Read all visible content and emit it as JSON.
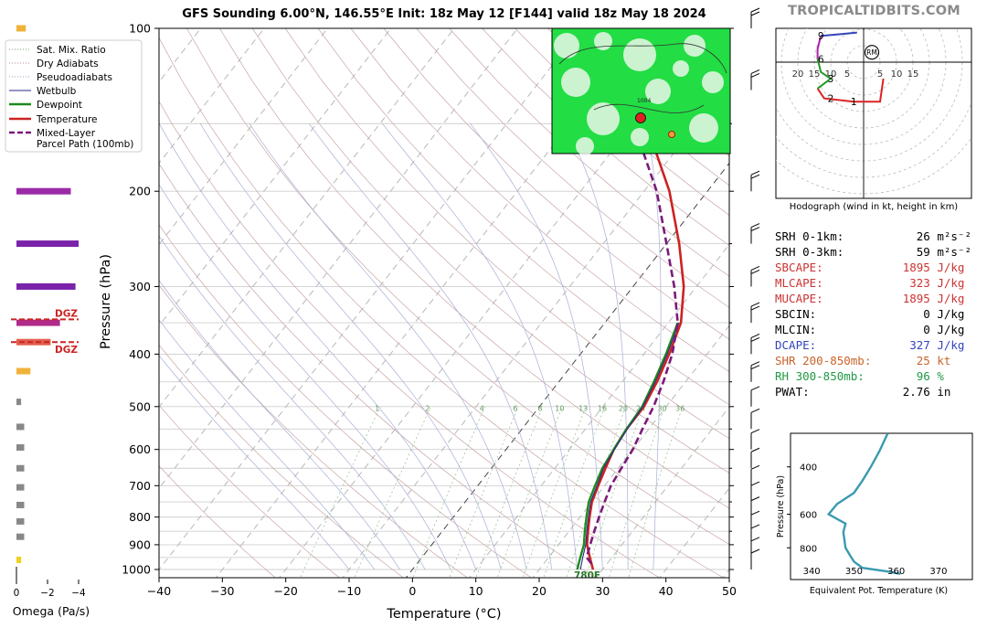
{
  "title": "GFS Sounding 6.00°N, 146.55°E Init: 18z May 12 [F144] valid 18z May 18 2024",
  "brand": "TROPICALTIDBITS.COM",
  "chart_data": [
    {
      "type": "line",
      "name": "skew-t",
      "xlabel": "Temperature (°C)",
      "ylabel": "Pressure (hPa)",
      "xlim": [
        -40,
        50
      ],
      "ylim": [
        1050,
        100
      ],
      "y_scale": "log",
      "x_ticks": [
        -40,
        -30,
        -20,
        -10,
        0,
        10,
        20,
        30,
        40,
        50
      ],
      "x_tick_labels": [
        "−40",
        "−30",
        "−20",
        "−10",
        "0",
        "10",
        "20",
        "30",
        "40",
        "50"
      ],
      "y_ticks": [
        100,
        200,
        300,
        400,
        500,
        600,
        700,
        800,
        900,
        1000
      ],
      "mixing_ratio_labels": [
        "1",
        "2",
        "4",
        "6",
        "8",
        "10",
        "13",
        "16",
        "20",
        "24",
        "30",
        "36"
      ],
      "surface_label": "780F",
      "legend": {
        "position": "top-left",
        "entries": [
          {
            "label": "Sat. Mix. Ratio",
            "color": "#7aa07a",
            "style": "dotted"
          },
          {
            "label": "Dry Adiabats",
            "color": "#b98a8a",
            "style": "dotted"
          },
          {
            "label": "Pseudoadiabats",
            "color": "#9aa0c0",
            "style": "dotted"
          },
          {
            "label": "Wetbulb",
            "color": "#2a2a8a",
            "style": "solid"
          },
          {
            "label": "Dewpoint",
            "color": "#1e8a1e",
            "style": "solid"
          },
          {
            "label": "Temperature",
            "color": "#cc2222",
            "style": "solid"
          },
          {
            "label": "Mixed-Layer",
            "color": "#7a1a7a",
            "style": "dashed"
          },
          {
            "label": "Parcel Path (100mb)",
            "color": "#7a1a7a",
            "style": "dashed"
          }
        ]
      },
      "series": [
        {
          "name": "Temperature",
          "color": "#cc2222",
          "points": [
            [
              28.5,
              1000
            ],
            [
              26.5,
              950
            ],
            [
              24.5,
              900
            ],
            [
              23,
              850
            ],
            [
              21.5,
              800
            ],
            [
              20,
              750
            ],
            [
              19,
              700
            ],
            [
              18,
              650
            ],
            [
              17,
              600
            ],
            [
              16.5,
              550
            ],
            [
              16.5,
              500
            ],
            [
              15.5,
              450
            ],
            [
              14,
              400
            ],
            [
              12,
              350
            ],
            [
              8,
              300
            ],
            [
              2,
              250
            ],
            [
              -6,
              200
            ],
            [
              -18,
              150
            ],
            [
              -26,
              120
            ],
            [
              -30,
              100
            ]
          ]
        },
        {
          "name": "Dewpoint",
          "color": "#1e8a1e",
          "points": [
            [
              26,
              1000
            ],
            [
              25,
              950
            ],
            [
              24,
              900
            ],
            [
              22.5,
              850
            ],
            [
              21,
              800
            ],
            [
              19.5,
              750
            ],
            [
              18.5,
              700
            ],
            [
              17.5,
              650
            ],
            [
              17,
              600
            ],
            [
              16.5,
              550
            ],
            [
              16.2,
              500
            ],
            [
              15,
              450
            ],
            [
              13.5,
              400
            ],
            [
              11.5,
              350
            ]
          ]
        },
        {
          "name": "Wetbulb",
          "color": "#2a2a8a",
          "points": [
            [
              26.5,
              1000
            ],
            [
              25.4,
              950
            ],
            [
              24.3,
              900
            ],
            [
              22.8,
              850
            ],
            [
              21.3,
              800
            ],
            [
              19.8,
              750
            ],
            [
              18.8,
              700
            ],
            [
              17.7,
              650
            ],
            [
              17.1,
              600
            ],
            [
              16.6,
              550
            ],
            [
              16.3,
              500
            ],
            [
              15.2,
              450
            ],
            [
              13.7,
              400
            ],
            [
              11.7,
              350
            ]
          ]
        },
        {
          "name": "Mixed-Layer Parcel Path (100mb)",
          "color": "#7a1a7a",
          "dashed": true,
          "points": [
            [
              27.5,
              975
            ],
            [
              26,
              950
            ],
            [
              25,
              900
            ],
            [
              24,
              850
            ],
            [
              23,
              800
            ],
            [
              22,
              750
            ],
            [
              21,
              700
            ],
            [
              20.5,
              650
            ],
            [
              20,
              600
            ],
            [
              19,
              550
            ],
            [
              18,
              500
            ],
            [
              16.5,
              450
            ],
            [
              14.5,
              400
            ],
            [
              11.5,
              350
            ],
            [
              6.5,
              300
            ],
            [
              0,
              250
            ],
            [
              -8,
              200
            ],
            [
              -20,
              150
            ],
            [
              -29,
              120
            ],
            [
              -33,
              100
            ]
          ]
        }
      ]
    },
    {
      "type": "bar",
      "name": "omega",
      "xlabel": "Omega (Pa/s)",
      "xlim": [
        0,
        -4
      ],
      "x_tick_labels": [
        "0",
        "−2",
        "−4"
      ],
      "dgz_label": "DGZ",
      "dgz_pressures": [
        345,
        380
      ],
      "values": [
        {
          "p": 100,
          "w": -0.6,
          "color": "#f0b23a"
        },
        {
          "p": 140,
          "w": -2.0,
          "color": "#d06080"
        },
        {
          "p": 200,
          "w": -3.5,
          "color": "#9a2aa8"
        },
        {
          "p": 250,
          "w": -4.0,
          "color": "#7a22aa"
        },
        {
          "p": 300,
          "w": -3.8,
          "color": "#7a22aa"
        },
        {
          "p": 350,
          "w": -2.8,
          "color": "#b02a8a"
        },
        {
          "p": 380,
          "w": -2.2,
          "color": "#e06050"
        },
        {
          "p": 430,
          "w": -0.9,
          "color": "#f0b23a"
        },
        {
          "p": 490,
          "w": -0.3,
          "color": "#888888"
        },
        {
          "p": 545,
          "w": -0.5,
          "color": "#888888"
        },
        {
          "p": 595,
          "w": -0.5,
          "color": "#888888"
        },
        {
          "p": 650,
          "w": -0.5,
          "color": "#888888"
        },
        {
          "p": 705,
          "w": -0.5,
          "color": "#888888"
        },
        {
          "p": 760,
          "w": -0.5,
          "color": "#888888"
        },
        {
          "p": 815,
          "w": -0.5,
          "color": "#888888"
        },
        {
          "p": 870,
          "w": -0.5,
          "color": "#888888"
        },
        {
          "p": 960,
          "w": -0.3,
          "color": "#f0d020"
        }
      ]
    },
    {
      "type": "line",
      "name": "hodograph",
      "caption": "Hodograph (wind in kt, height in km)",
      "ring_labels": [
        "20",
        "15",
        "10",
        "5",
        "5",
        "10",
        "15"
      ],
      "storm_motion_label": "RM",
      "height_labels": [
        "1",
        "2",
        "3",
        "6",
        "9"
      ],
      "series": [
        {
          "name": "0-3km",
          "color": "#dd2222",
          "points": [
            [
              6,
              -5
            ],
            [
              5,
              -12
            ],
            [
              -3,
              -12
            ],
            [
              -12,
              -11
            ],
            [
              -14,
              -8
            ]
          ]
        },
        {
          "name": "3-6km",
          "color": "#229922",
          "points": [
            [
              -14,
              -8
            ],
            [
              -10,
              -5
            ],
            [
              -13,
              -3
            ],
            [
              -14,
              1
            ]
          ]
        },
        {
          "name": "6-9km",
          "color": "#aa22aa",
          "points": [
            [
              -14,
              1
            ],
            [
              -14,
              4
            ],
            [
              -13,
              8
            ]
          ]
        },
        {
          "name": "9+km",
          "color": "#3344bb",
          "points": [
            [
              -13,
              8
            ],
            [
              -7,
              8.5
            ],
            [
              -2,
              9
            ]
          ]
        }
      ],
      "storm_motion": [
        2.5,
        3
      ]
    },
    {
      "type": "line",
      "name": "theta-e",
      "xlabel": "Equivalent Pot. Temperature (K)",
      "ylabel": "Pressure (hPa)",
      "xlim": [
        335,
        378
      ],
      "ylim": [
        1050,
        300
      ],
      "x_ticks": [
        340,
        350,
        360,
        370
      ],
      "y_ticks": [
        400,
        600,
        800
      ],
      "series": [
        {
          "name": "theta-e",
          "color": "#3a9ab0",
          "points": [
            [
              361,
              1000
            ],
            [
              358,
              980
            ],
            [
              352,
              950
            ],
            [
              350,
              900
            ],
            [
              349,
              850
            ],
            [
              348,
              800
            ],
            [
              347.5,
              700
            ],
            [
              348,
              650
            ],
            [
              344,
              600
            ],
            [
              346,
              550
            ],
            [
              350,
              500
            ],
            [
              352,
              450
            ],
            [
              354,
              400
            ],
            [
              356,
              350
            ],
            [
              358,
              300
            ]
          ]
        }
      ]
    }
  ],
  "stats": [
    {
      "label": "SRH 0-1km:",
      "value": "26",
      "unit": "m²s⁻²",
      "color": "#000000"
    },
    {
      "label": "SRH 0-3km:",
      "value": "59",
      "unit": "m²s⁻²",
      "color": "#000000"
    },
    {
      "label": "SBCAPE:",
      "value": "1895",
      "unit": "J/kg",
      "color": "#cc3333"
    },
    {
      "label": "MLCAPE:",
      "value": "323",
      "unit": "J/kg",
      "color": "#cc3333"
    },
    {
      "label": "MUCAPE:",
      "value": "1895",
      "unit": "J/kg",
      "color": "#cc3333"
    },
    {
      "label": "SBCIN:",
      "value": "0",
      "unit": "J/kg",
      "color": "#000000"
    },
    {
      "label": "MLCIN:",
      "value": "0",
      "unit": "J/kg",
      "color": "#000000"
    },
    {
      "label": "DCAPE:",
      "value": "327",
      "unit": "J/kg",
      "color": "#3344bb"
    },
    {
      "label": "SHR 200-850mb:",
      "value": "25",
      "unit": "kt",
      "color": "#c8642a"
    },
    {
      "label": "RH 300-850mb:",
      "value": "96",
      "unit": "%",
      "color": "#229944"
    },
    {
      "label": "PWAT:",
      "value": "2.76",
      "unit": "in",
      "color": "#000000"
    }
  ],
  "inset_map": {
    "type": "satellite-map",
    "labels": [
      "1004"
    ]
  }
}
